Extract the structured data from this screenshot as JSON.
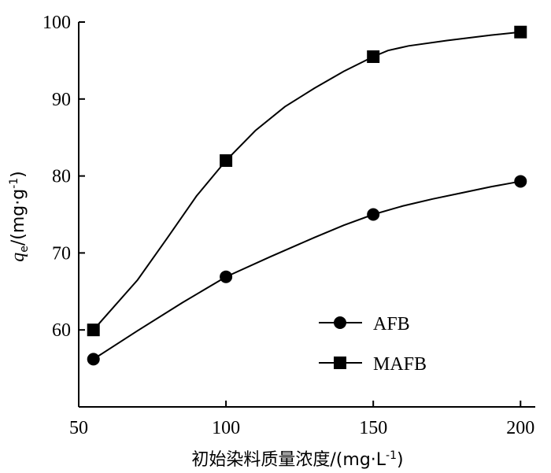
{
  "chart_data": {
    "type": "line",
    "x": [
      55,
      100,
      150,
      200
    ],
    "series": [
      {
        "name": "AFB",
        "marker": "circle",
        "values": [
          56.2,
          66.9,
          75.0,
          79.3
        ],
        "curve_x": [
          55,
          70,
          85,
          100,
          115,
          130,
          140,
          150,
          160,
          170,
          180,
          190,
          200
        ],
        "curve_y": [
          56.2,
          59.9,
          63.5,
          66.9,
          69.5,
          72.0,
          73.6,
          75.0,
          76.1,
          77.0,
          77.8,
          78.6,
          79.3
        ]
      },
      {
        "name": "MAFB",
        "marker": "square",
        "values": [
          60.0,
          82.0,
          95.5,
          98.7
        ],
        "curve_x": [
          55,
          70,
          80,
          90,
          100,
          110,
          120,
          130,
          140,
          150,
          155,
          162,
          175,
          190,
          200
        ],
        "curve_y": [
          60.0,
          66.5,
          71.9,
          77.4,
          82.0,
          85.9,
          89.0,
          91.4,
          93.6,
          95.5,
          96.3,
          96.9,
          97.6,
          98.3,
          98.7
        ]
      }
    ],
    "xlim": [
      50,
      205
    ],
    "ylim": [
      50,
      100
    ],
    "xticks": [
      50,
      100,
      150,
      200
    ],
    "yticks": [
      60,
      70,
      80,
      90,
      100
    ],
    "xlabel": "初始染料质量浓度/(mg·L",
    "xlabel_sup": "-1",
    "xlabel_close": ")",
    "ylabel_q": "q",
    "ylabel_sub": "e",
    "ylabel_rest": "/(mg·g",
    "ylabel_sup": "-1",
    "ylabel_close": ")",
    "grid": false,
    "legend_position": "lower-right"
  }
}
